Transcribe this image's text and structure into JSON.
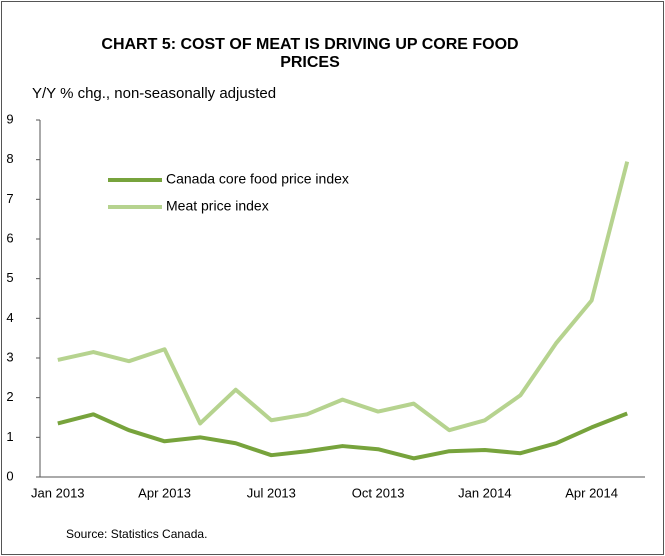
{
  "chart_data": {
    "type": "line",
    "title": "CHART 5: COST OF MEAT IS DRIVING UP CORE FOOD PRICES",
    "subtitle": "Y/Y % chg., non-seasonally adjusted",
    "source": "Source: Statistics Canada.",
    "categories": [
      "Jan 2013",
      null,
      null,
      "Apr 2013",
      null,
      null,
      "Jul 2013",
      null,
      null,
      "Oct 2013",
      null,
      null,
      "Jan 2014",
      null,
      null,
      "Apr 2014",
      null
    ],
    "series": [
      {
        "name": "Canada core food price index",
        "color": "#77a33c",
        "values": [
          1.35,
          1.58,
          1.18,
          0.9,
          1.0,
          0.85,
          0.55,
          0.65,
          0.78,
          0.7,
          0.47,
          0.65,
          0.68,
          0.6,
          0.85,
          1.25,
          1.6
        ]
      },
      {
        "name": "Meat price index",
        "color": "#b6d38f",
        "values": [
          2.95,
          3.15,
          2.92,
          3.22,
          1.35,
          2.2,
          1.43,
          1.58,
          1.95,
          1.65,
          1.85,
          1.18,
          1.43,
          2.06,
          3.37,
          4.45,
          7.95
        ]
      }
    ],
    "ylim": [
      0,
      9
    ],
    "yticks": [
      0,
      1,
      2,
      3,
      4,
      5,
      6,
      7,
      8,
      9
    ],
    "grid": false,
    "legend": "upper-left"
  }
}
